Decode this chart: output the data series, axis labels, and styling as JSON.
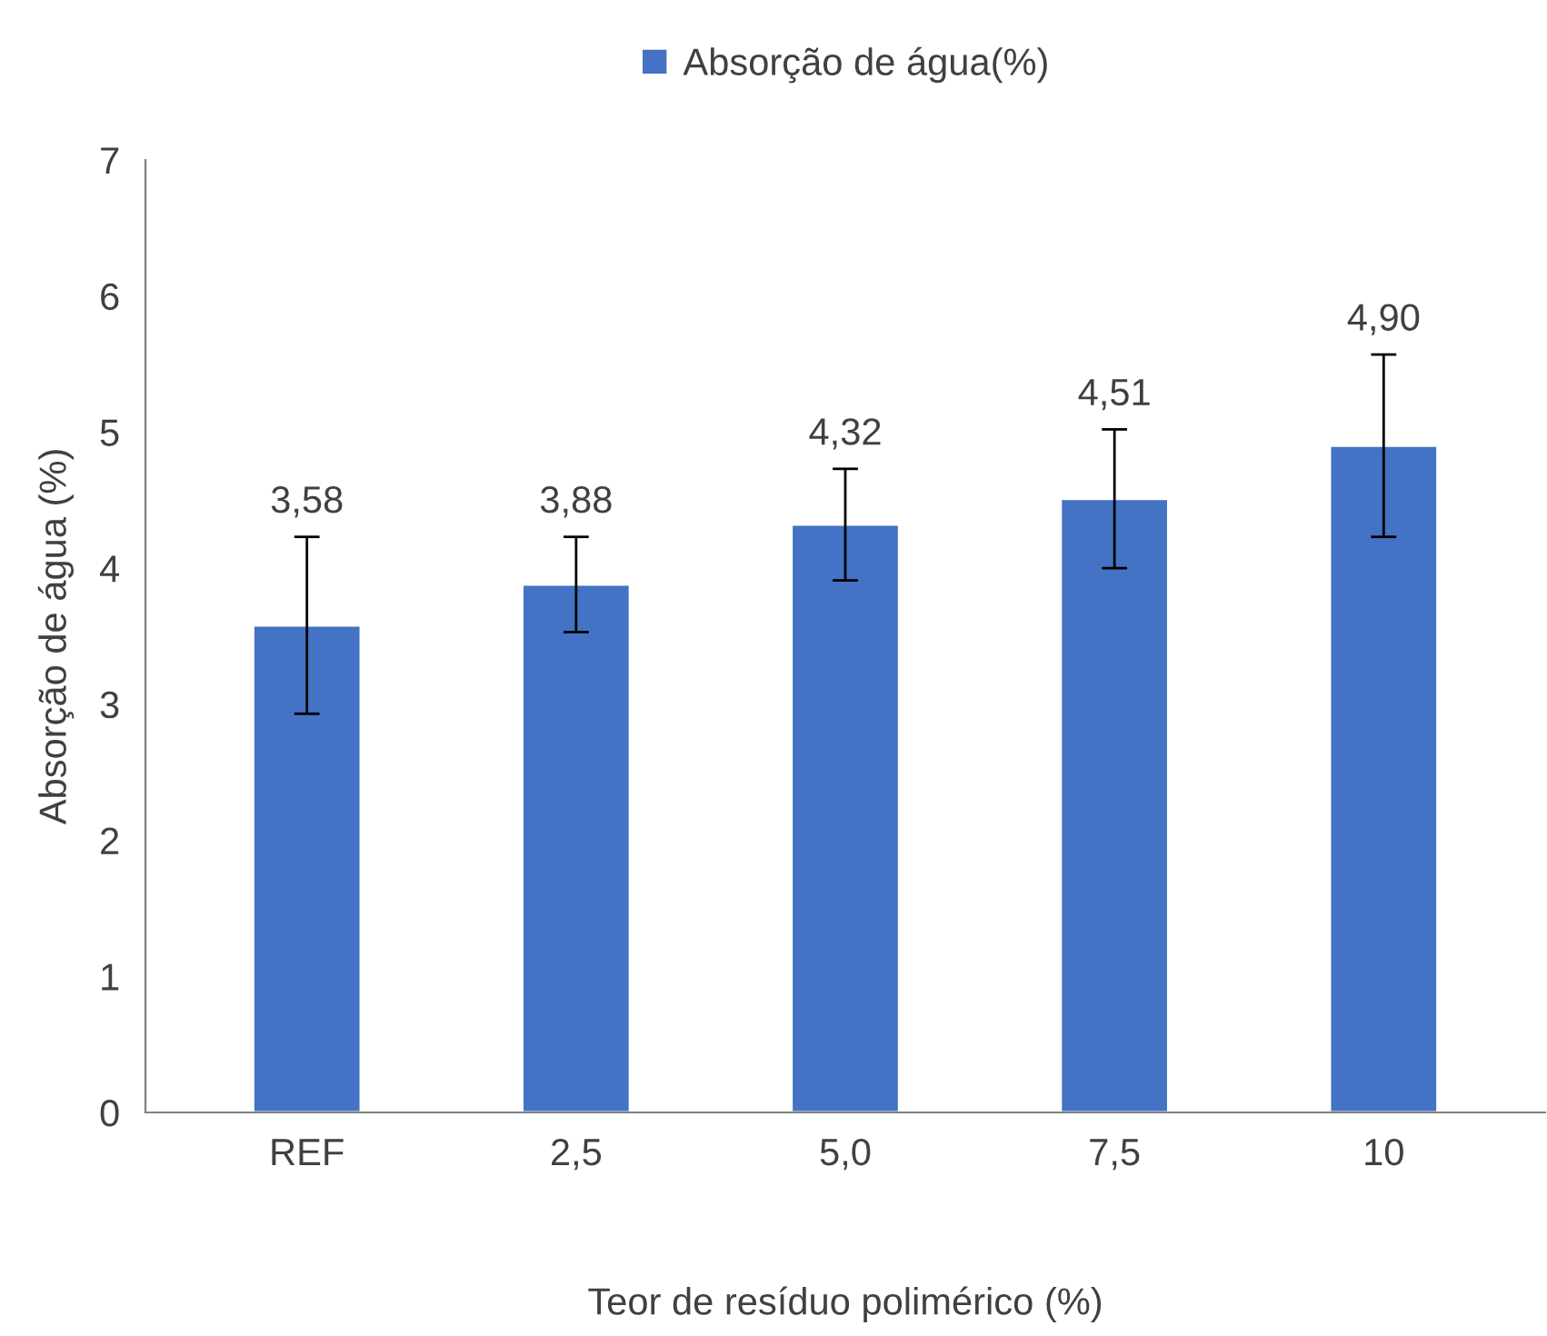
{
  "chart_data": {
    "type": "bar",
    "xlabel": "Teor de resíduo polimérico (%)",
    "ylabel": "Absorção de água (%)",
    "categories": [
      "REF",
      "2,5",
      "5,0",
      "7,5",
      "10"
    ],
    "series": [
      {
        "name": "Absorção de água(%)",
        "color": "#4472c4",
        "values": [
          3.58,
          3.88,
          4.32,
          4.51,
          4.9
        ],
        "errors": [
          0.65,
          0.35,
          0.41,
          0.51,
          0.67
        ],
        "value_labels": [
          "3,58",
          "3,88",
          "4,32",
          "4,51",
          "4,90"
        ]
      }
    ],
    "ylim": [
      0,
      7
    ],
    "yticks": [
      0,
      1,
      2,
      3,
      4,
      5,
      6,
      7
    ],
    "grid": false,
    "legend": "top"
  }
}
